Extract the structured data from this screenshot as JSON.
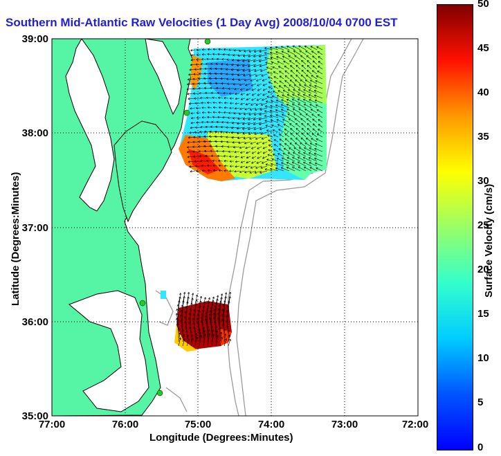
{
  "title": "Southern Mid-Atlantic Raw Velocities (1 Day Avg) 2008/10/04 0700 EST",
  "axes": {
    "xlabel": "Longitude (Degrees:Minutes)",
    "ylabel": "Latitude (Degrees:Minutes)",
    "xticks": [
      "77:00",
      "76:00",
      "75:00",
      "74:00",
      "73:00",
      "72:00"
    ],
    "yticks": [
      "39:00",
      "38:00",
      "37:00",
      "36:00",
      "35:00"
    ],
    "grid": "dotted"
  },
  "colorbar": {
    "label": "Surface Velocity (cm/s)",
    "min": 0,
    "max": 50,
    "ticks": [
      "50",
      "45",
      "40",
      "35",
      "30",
      "25",
      "20",
      "15",
      "10",
      "5",
      "0"
    ]
  },
  "colors": {
    "land": "#55f5a5",
    "water": "#ffffff",
    "coast": "#000000",
    "bathymetry": "#9a9a9a",
    "title": "#1f1fd6",
    "stations": "#22cc22"
  }
}
